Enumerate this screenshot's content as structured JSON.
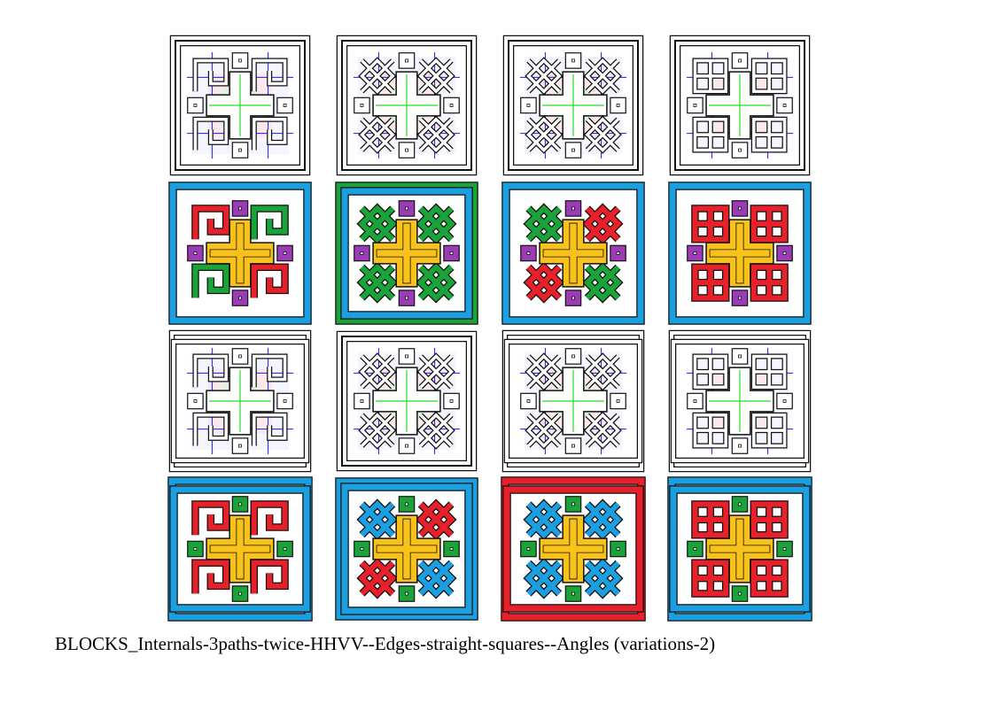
{
  "caption": "BLOCKS_Internals-3paths-twice-HHVV--Edges-straight-squares--Angles (variations-2)",
  "colors": {
    "stroke": "#111111",
    "line_blue": "#1a1aff",
    "line_red": "#ff2020",
    "line_green": "#22dd22",
    "shade_blue": "#dfe3ff",
    "shade_red": "#ffdcdc",
    "shade_green": "#d9f7d9",
    "fill_blue": "#1b9fe0",
    "fill_green": "#19a339",
    "fill_red": "#e8202a",
    "fill_yellow": "#f9c21a",
    "fill_purple": "#9b3bb5"
  },
  "tiles": [
    {
      "mode": "outline",
      "border": "square",
      "knot": "loop"
    },
    {
      "mode": "outline",
      "border": "woven",
      "knot": "interlace"
    },
    {
      "mode": "outline",
      "border": "square",
      "knot": "interlace"
    },
    {
      "mode": "outline",
      "border": "square",
      "knot": "chain"
    },
    {
      "mode": "color",
      "border": "square",
      "knot": "loop",
      "c_border": "blue",
      "c_knot": "red",
      "c_knot2": "green",
      "c_cross": "yellow",
      "c_small": "purple"
    },
    {
      "mode": "color",
      "border": "woven",
      "knot": "interlace",
      "c_border": "green",
      "c_border2": "blue",
      "c_knot": "green",
      "c_knot2": "green",
      "c_cross": "yellow",
      "c_small": "purple"
    },
    {
      "mode": "color",
      "border": "square",
      "knot": "interlace",
      "c_border": "blue",
      "c_knot": "green",
      "c_knot2": "red",
      "c_cross": "yellow",
      "c_small": "purple"
    },
    {
      "mode": "color",
      "border": "square",
      "knot": "chain",
      "c_border": "blue",
      "c_knot": "red",
      "c_knot2": "red",
      "c_cross": "yellow",
      "c_small": "purple"
    },
    {
      "mode": "outline",
      "border": "overlap",
      "knot": "loop"
    },
    {
      "mode": "outline",
      "border": "woven",
      "knot": "interlace"
    },
    {
      "mode": "outline",
      "border": "overlap",
      "knot": "interlace"
    },
    {
      "mode": "outline",
      "border": "overlap",
      "knot": "chain"
    },
    {
      "mode": "color",
      "border": "overlap",
      "knot": "loop",
      "c_border": "blue",
      "c_knot": "red",
      "c_knot2": "red",
      "c_cross": "yellow",
      "c_small": "green"
    },
    {
      "mode": "color",
      "border": "woven",
      "knot": "interlace",
      "c_border": "blue",
      "c_border2": "blue",
      "c_knot": "blue",
      "c_knot2": "red",
      "c_cross": "yellow",
      "c_small": "green"
    },
    {
      "mode": "color",
      "border": "overlap",
      "knot": "interlace",
      "c_border": "red",
      "c_knot": "blue",
      "c_knot2": "blue",
      "c_cross": "yellow",
      "c_small": "green"
    },
    {
      "mode": "color",
      "border": "overlap",
      "knot": "chain",
      "c_border": "blue",
      "c_knot": "red",
      "c_knot2": "red",
      "c_cross": "yellow",
      "c_small": "green"
    }
  ]
}
